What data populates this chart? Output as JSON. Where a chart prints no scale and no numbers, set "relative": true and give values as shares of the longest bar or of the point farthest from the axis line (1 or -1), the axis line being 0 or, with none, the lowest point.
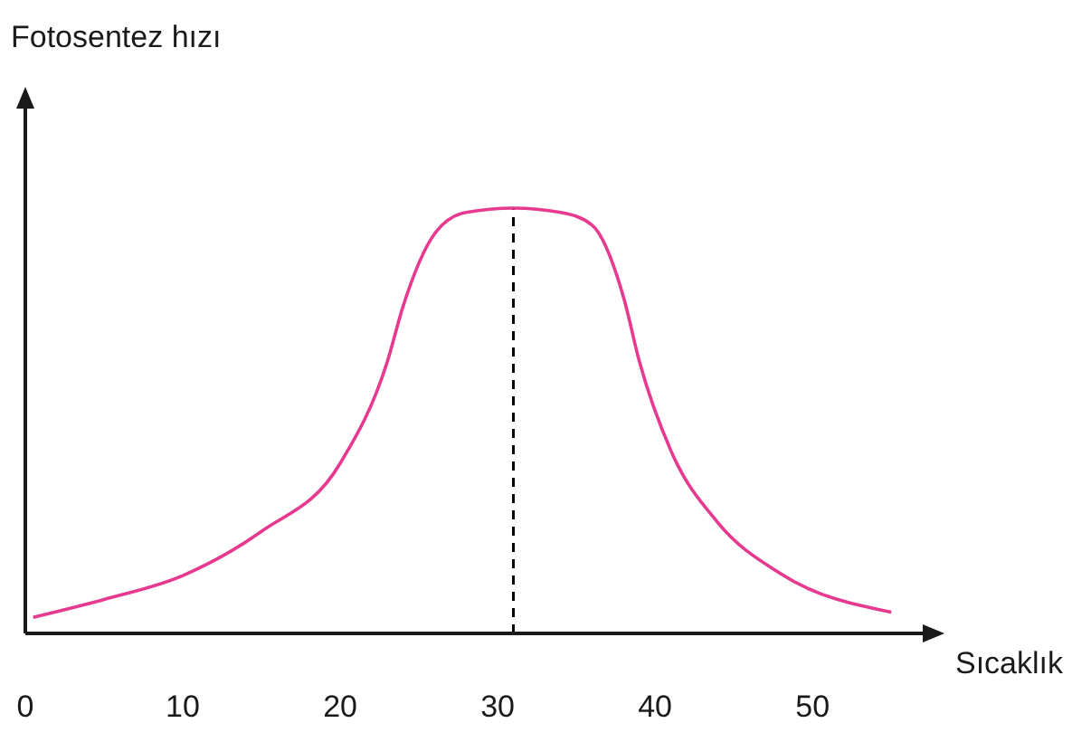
{
  "chart_data": {
    "type": "line",
    "relative": true,
    "xlabel": "Sıcaklık",
    "ylabel": "Fotosentez hızı",
    "xlim": [
      0,
      57
    ],
    "xticks": [
      0,
      10,
      20,
      30,
      40,
      50
    ],
    "grid": false,
    "marker": "none",
    "line_style": "solid",
    "series": [
      {
        "color": "#e6398f",
        "x": [
          0.5,
          5,
          10,
          15,
          20,
          23,
          24,
          26,
          28,
          31,
          34,
          36,
          38,
          39,
          41,
          44,
          48,
          55
        ],
        "values": [
          0.038,
          0.08,
          0.136,
          0.24,
          0.4,
          0.64,
          0.77,
          0.94,
          0.99,
          1,
          0.99,
          0.96,
          0.79,
          0.64,
          0.43,
          0.26,
          0.14,
          0.05
        ]
      }
    ],
    "ref_lines": [
      {
        "axis": "x",
        "value": 31,
        "color": "#000000",
        "line_style": "dashed"
      }
    ]
  }
}
